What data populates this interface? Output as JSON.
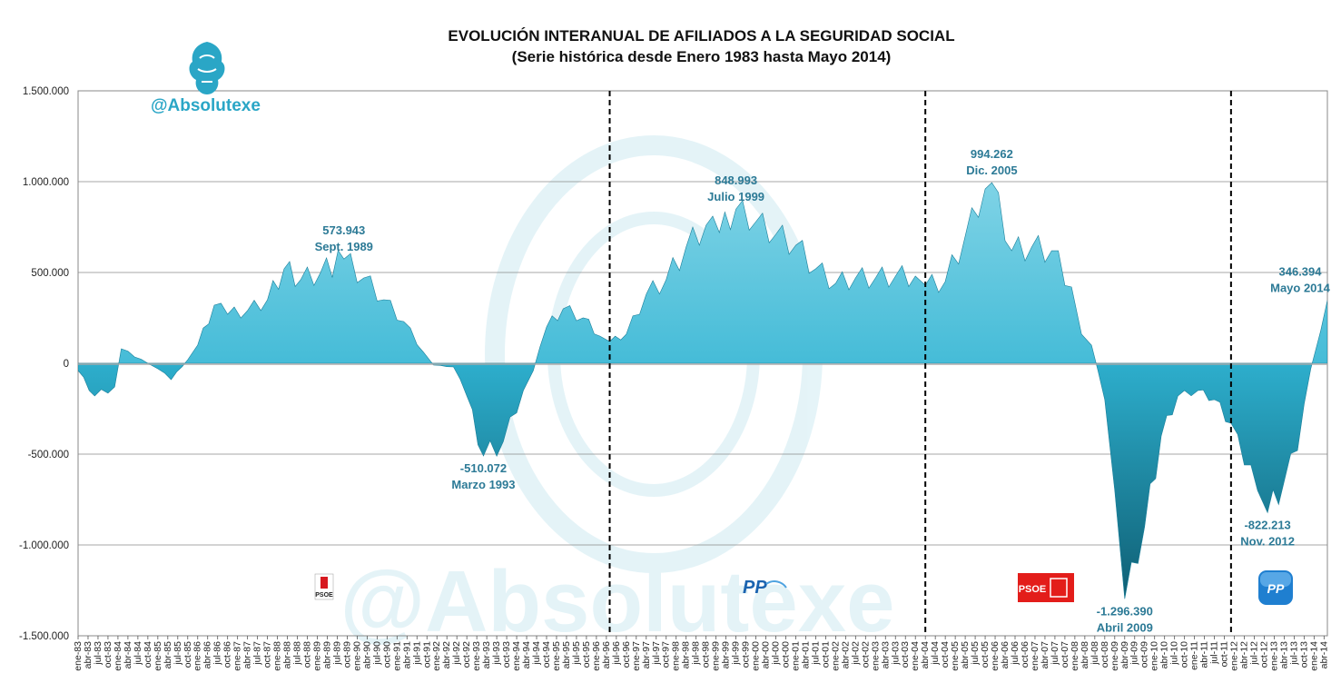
{
  "header": {
    "title": "EVOLUCIÓN INTERANUAL DE AFILIADOS A LA SEGURIDAD SOCIAL",
    "subtitle": "(Serie histórica desde Enero 1983 hasta Mayo 2014)"
  },
  "watermark": {
    "handle": "@Absolutexe",
    "large_text": "@Absolutexe"
  },
  "party_badges": [
    {
      "name": "psoe-logo-1",
      "text": "PSOE",
      "period_start": "1983",
      "style": "small"
    },
    {
      "name": "pp-logo-1",
      "text": "PP",
      "period_start": "1996",
      "style": "wordmark"
    },
    {
      "name": "psoe-logo-2",
      "text": "PSOE",
      "period_start": "2004",
      "style": "red"
    },
    {
      "name": "pp-logo-2",
      "text": "PP",
      "period_start": "2011",
      "style": "blue"
    }
  ],
  "colors": {
    "area": "#2fb3d2",
    "area_dark": "#1a7f9a",
    "accent_text": "#2c7a96",
    "divider": "#000000"
  },
  "chart_data": {
    "type": "area",
    "x_start": "1983-01",
    "x_end": "2014-05",
    "ylim": [
      -1500000,
      1500000
    ],
    "yticks": [
      "1.500.000",
      "1.000.000",
      "500.000",
      "0",
      "-500.000",
      "-1.000.000",
      "-1.500.000"
    ],
    "ytick_values": [
      1500000,
      1000000,
      500000,
      0,
      -500000,
      -1000000,
      -1500000
    ],
    "xtick_months": [
      "ene",
      "abr",
      "jul",
      "oct"
    ],
    "grid": true,
    "vertical_markers": [
      "1996-05",
      "2004-04",
      "2011-12"
    ],
    "series": [
      {
        "points": [
          [
            "1983-01",
            -40000
          ],
          [
            "1983-06",
            -180000
          ],
          [
            "1983-12",
            -130000
          ],
          [
            "1984-02",
            80000
          ],
          [
            "1984-10",
            0
          ],
          [
            "1985-01",
            -30000
          ],
          [
            "1985-05",
            -90000
          ],
          [
            "1985-10",
            20000
          ],
          [
            "1986-01",
            100000
          ],
          [
            "1986-06",
            320000
          ],
          [
            "1986-10",
            270000
          ],
          [
            "1987-04",
            290000
          ],
          [
            "1987-10",
            350000
          ],
          [
            "1988-03",
            520000
          ],
          [
            "1988-08",
            460000
          ],
          [
            "1989-02",
            500000
          ],
          [
            "1989-09",
            573943
          ],
          [
            "1990-03",
            470000
          ],
          [
            "1990-09",
            350000
          ],
          [
            "1991-03",
            230000
          ],
          [
            "1991-09",
            60000
          ],
          [
            "1991-12",
            -10000
          ],
          [
            "1992-06",
            -20000
          ],
          [
            "1992-10",
            -180000
          ],
          [
            "1993-03",
            -510072
          ],
          [
            "1993-09",
            -430000
          ],
          [
            "1994-03",
            -150000
          ],
          [
            "1994-06",
            -40000
          ],
          [
            "1994-10",
            200000
          ],
          [
            "1995-03",
            300000
          ],
          [
            "1995-09",
            250000
          ],
          [
            "1996-02",
            150000
          ],
          [
            "1996-05",
            120000
          ],
          [
            "1996-10",
            160000
          ],
          [
            "1997-04",
            380000
          ],
          [
            "1997-10",
            460000
          ],
          [
            "1998-04",
            640000
          ],
          [
            "1998-10",
            760000
          ],
          [
            "1999-02",
            720000
          ],
          [
            "1999-07",
            848993
          ],
          [
            "2000-01",
            780000
          ],
          [
            "2000-07",
            710000
          ],
          [
            "2001-01",
            650000
          ],
          [
            "2001-07",
            520000
          ],
          [
            "2002-01",
            440000
          ],
          [
            "2002-07",
            470000
          ],
          [
            "2003-01",
            470000
          ],
          [
            "2003-07",
            480000
          ],
          [
            "2004-01",
            480000
          ],
          [
            "2004-04",
            430000
          ],
          [
            "2004-10",
            450000
          ],
          [
            "2005-04",
            700000
          ],
          [
            "2005-10",
            960000
          ],
          [
            "2005-12",
            994262
          ],
          [
            "2006-06",
            620000
          ],
          [
            "2006-12",
            640000
          ],
          [
            "2007-06",
            620000
          ],
          [
            "2007-12",
            420000
          ],
          [
            "2008-03",
            160000
          ],
          [
            "2008-06",
            100000
          ],
          [
            "2008-10",
            -200000
          ],
          [
            "2009-01",
            -700000
          ],
          [
            "2009-04",
            -1296390
          ],
          [
            "2009-10",
            -900000
          ],
          [
            "2010-03",
            -400000
          ],
          [
            "2010-08",
            -180000
          ],
          [
            "2011-02",
            -150000
          ],
          [
            "2011-07",
            -200000
          ],
          [
            "2011-12",
            -330000
          ],
          [
            "2012-04",
            -560000
          ],
          [
            "2012-08",
            -700000
          ],
          [
            "2012-11",
            -822213
          ],
          [
            "2013-04",
            -650000
          ],
          [
            "2013-08",
            -480000
          ],
          [
            "2013-12",
            -30000
          ],
          [
            "2014-03",
            180000
          ],
          [
            "2014-05",
            346394
          ]
        ]
      }
    ],
    "annotations": [
      {
        "value": "573.943",
        "label": "Sept. 1989",
        "x": "1989-09",
        "y": 573943
      },
      {
        "value": "-510.072",
        "label": "Marzo 1993",
        "x": "1993-03",
        "y": -510072
      },
      {
        "value": "848.993",
        "label": "Julio 1999",
        "x": "1999-07",
        "y": 848993
      },
      {
        "value": "994.262",
        "label": "Dic. 2005",
        "x": "2005-12",
        "y": 994262
      },
      {
        "value": "-1.296.390",
        "label": "Abril 2009",
        "x": "2009-04",
        "y": -1296390
      },
      {
        "value": "-822.213",
        "label": "Nov. 2012",
        "x": "2012-11",
        "y": -822213
      },
      {
        "value": "346.394",
        "label": "Mayo 2014",
        "x": "2014-05",
        "y": 346394
      }
    ]
  }
}
